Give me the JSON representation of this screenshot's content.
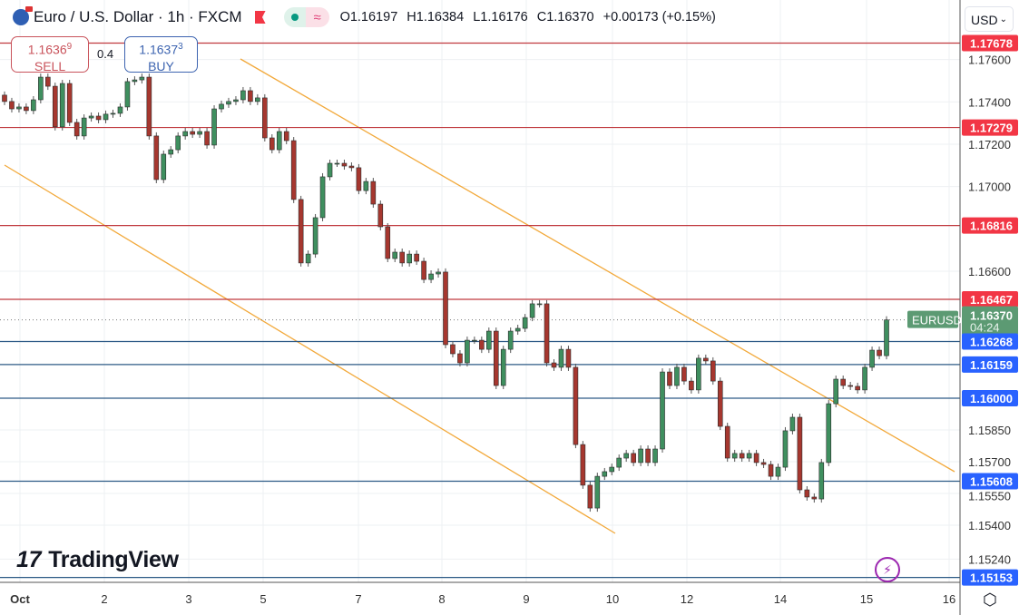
{
  "header": {
    "symbol_title": "Euro / U.S. Dollar · 1h · FXCM",
    "open": "O1.16197",
    "high": "H1.16384",
    "low": "L1.16176",
    "close": "C1.16370",
    "change": "+0.00173 (+0.15%)"
  },
  "trade": {
    "sell_price": "1.1636",
    "sell_price_sup": "9",
    "sell_label": "SELL",
    "spread": "0.4",
    "buy_price": "1.1637",
    "buy_price_sup": "3",
    "buy_label": "BUY"
  },
  "currency_selector": {
    "value": "USD"
  },
  "brand": {
    "logo_text": "TradingView"
  },
  "icons": {
    "symbol": "euro-dollar-flag-icon",
    "flag": "flag-icon",
    "market_open": "dot-icon",
    "replay": "wave-icon",
    "alert": "lightning-icon",
    "settings": "hexagon-settings-icon"
  },
  "colors": {
    "up": "#3f8f5f",
    "down": "#a6372f",
    "resistance": "#f23645",
    "support": "#2962ff",
    "channel": "#f2a93b",
    "last_price": "#5c9a73"
  },
  "chart_data": {
    "type": "candlestick",
    "title": "Euro / U.S. Dollar · 1h · FXCM",
    "xlabel": "",
    "ylabel": "",
    "ylim": [
      1.151,
      1.1778
    ],
    "grid": true,
    "x_ticks": [
      "Oct",
      "2",
      "3",
      "5",
      "7",
      "8",
      "9",
      "10",
      "12",
      "14",
      "15",
      "16"
    ],
    "y_ticks": [
      "1.17600",
      "1.17400",
      "1.17200",
      "1.17000",
      "1.16600",
      "1.15850",
      "1.15700",
      "1.15550",
      "1.15400",
      "1.15240"
    ],
    "closes": [
      1.17402,
      1.17367,
      1.17376,
      1.17359,
      1.1741,
      1.17517,
      1.17474,
      1.17282,
      1.17487,
      1.17303,
      1.17239,
      1.17324,
      1.17333,
      1.17316,
      1.17342,
      1.17346,
      1.17376,
      1.17496,
      1.17504,
      1.17517,
      1.17239,
      1.17033,
      1.17153,
      1.17174,
      1.17239,
      1.1726,
      1.17247,
      1.1726,
      1.17196,
      1.17367,
      1.17389,
      1.17402,
      1.1741,
      1.17453,
      1.17402,
      1.17419,
      1.1723,
      1.17174,
      1.1726,
      1.17217,
      1.16939,
      1.16639,
      1.16681,
      1.16853,
      1.17046,
      1.1711,
      1.1711,
      1.17097,
      1.17089,
      1.16981,
      1.17024,
      1.16917,
      1.1681,
      1.1666,
      1.1669,
      1.16639,
      1.16681,
      1.16647,
      1.16561,
      1.16587,
      1.16596,
      1.16253,
      1.1621,
      1.16167,
      1.16274,
      1.16274,
      1.16231,
      1.16317,
      1.1606,
      1.16231,
      1.16317,
      1.1633,
      1.16381,
      1.16446,
      1.16446,
      1.16167,
      1.16146,
      1.16231,
      1.16146,
      1.15781,
      1.15589,
      1.15481,
      1.15631,
      1.15653,
      1.15674,
      1.15717,
      1.15739,
      1.15696,
      1.1576,
      1.15696,
      1.1576,
      1.16124,
      1.1606,
      1.16146,
      1.16081,
      1.16039,
      1.16189,
      1.16176,
      1.16081,
      1.15867,
      1.15717,
      1.15739,
      1.15717,
      1.15739,
      1.15696,
      1.15687,
      1.15631,
      1.15674,
      1.15846,
      1.1591,
      1.15567,
      1.15533,
      1.15524,
      1.15696,
      1.15974,
      1.1609,
      1.1606,
      1.16056,
      1.16039,
      1.16146,
      1.16227,
      1.16201,
      1.1637
    ],
    "resistance_levels": [
      "1.17678",
      "1.17279",
      "1.16816",
      "1.16467"
    ],
    "support_levels": [
      "1.16268",
      "1.16159",
      "1.16000",
      "1.15608",
      "1.15153"
    ],
    "last_price": {
      "symbol": "EURUSD",
      "price": "1.16370",
      "countdown": "04:24"
    }
  }
}
